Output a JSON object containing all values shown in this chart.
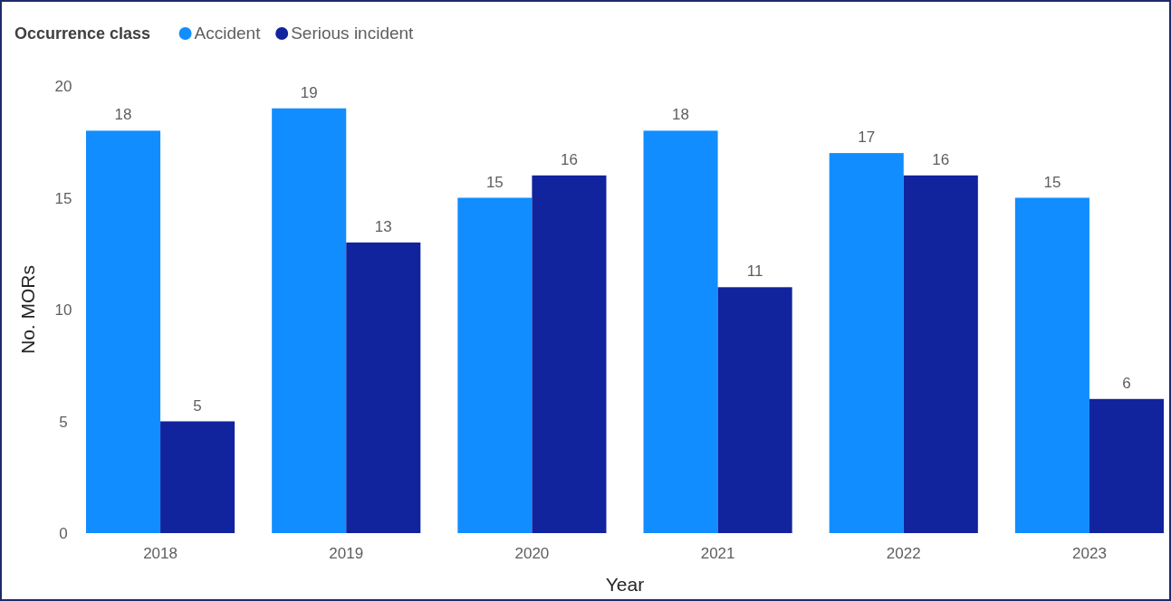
{
  "chart_data": {
    "type": "bar",
    "xlabel": "Year",
    "ylabel": "No. MORs",
    "legend_title": "Occurrence class",
    "legend": "top left",
    "categories": [
      "2018",
      "2019",
      "2020",
      "2021",
      "2022",
      "2023"
    ],
    "series": [
      {
        "name": "Accident",
        "color": "#118dff",
        "values": [
          18,
          19,
          15,
          18,
          17,
          15
        ]
      },
      {
        "name": "Serious incident",
        "color": "#12239e",
        "values": [
          5,
          13,
          16,
          11,
          16,
          6
        ]
      }
    ],
    "ylim": [
      0,
      20
    ],
    "yticks": [
      0,
      5,
      10,
      15,
      20
    ],
    "grid": false,
    "data_labels": true
  }
}
